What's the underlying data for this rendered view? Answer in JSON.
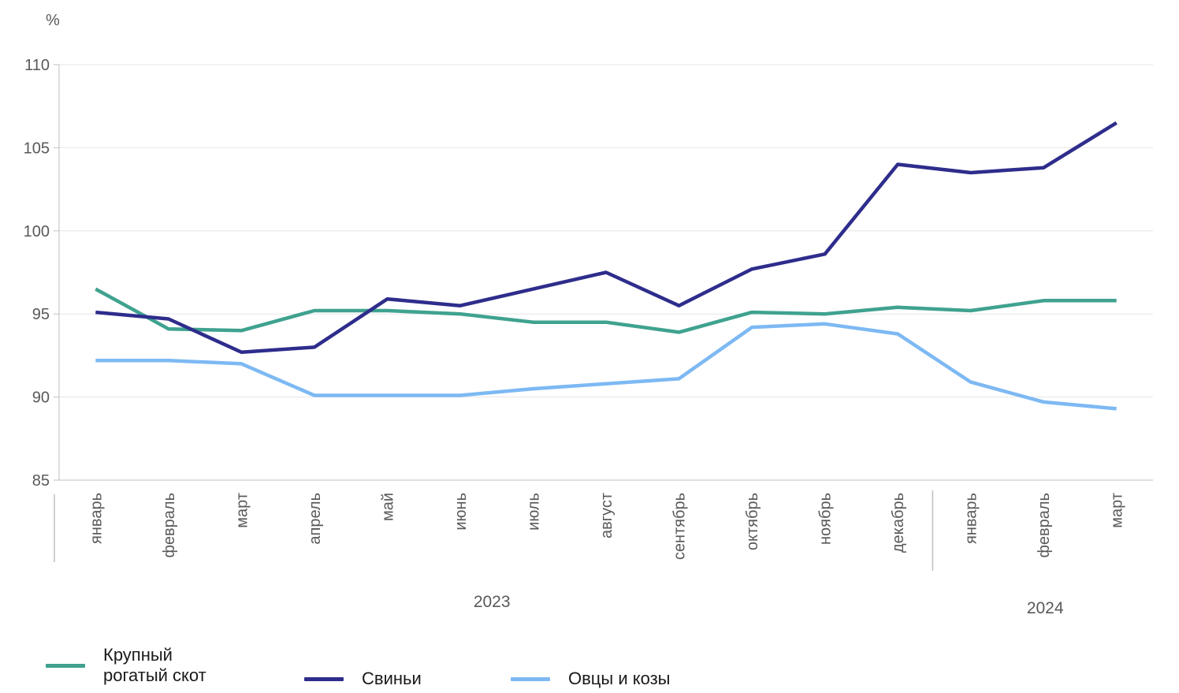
{
  "chart_data": {
    "type": "line",
    "ylabel": "%",
    "ylim": [
      85,
      110
    ],
    "yticks": [
      "110",
      "105",
      "100",
      "95",
      "90",
      "85"
    ],
    "categories": [
      "январь",
      "февраль",
      "март",
      "апрель",
      "май",
      "июнь",
      "июль",
      "август",
      "сентябрь",
      "октябрь",
      "ноябрь",
      "декабрь",
      "январь",
      "февраль",
      "март"
    ],
    "year_groups": [
      {
        "label": "2023",
        "start": 0,
        "end": 11
      },
      {
        "label": "2024",
        "start": 12,
        "end": 14
      }
    ],
    "grid": true,
    "legend_position": "bottom",
    "series": [
      {
        "name": "Крупный рогатый скот",
        "color": "#3fa28f",
        "values": [
          96.5,
          94.1,
          94.0,
          95.2,
          95.2,
          95.0,
          94.5,
          94.5,
          93.9,
          95.1,
          95.0,
          95.4,
          95.2,
          95.8,
          95.8
        ]
      },
      {
        "name": "Свиньи",
        "color": "#2e2d8c",
        "values": [
          95.1,
          94.7,
          92.7,
          93.0,
          95.9,
          95.5,
          96.5,
          97.5,
          95.5,
          97.7,
          98.6,
          104.0,
          103.5,
          103.8,
          106.5
        ]
      },
      {
        "name": "Овцы и козы",
        "color": "#7db9f3",
        "values": [
          92.2,
          92.2,
          92.0,
          90.1,
          90.1,
          90.1,
          90.5,
          90.8,
          91.1,
          94.2,
          94.4,
          93.8,
          90.9,
          89.7,
          89.3
        ]
      }
    ]
  },
  "legend": {
    "items": [
      {
        "line1": "Крупный",
        "line2": "рогатый скот"
      },
      {
        "line1": "Свиньи"
      },
      {
        "line1": "Овцы и козы"
      }
    ]
  }
}
